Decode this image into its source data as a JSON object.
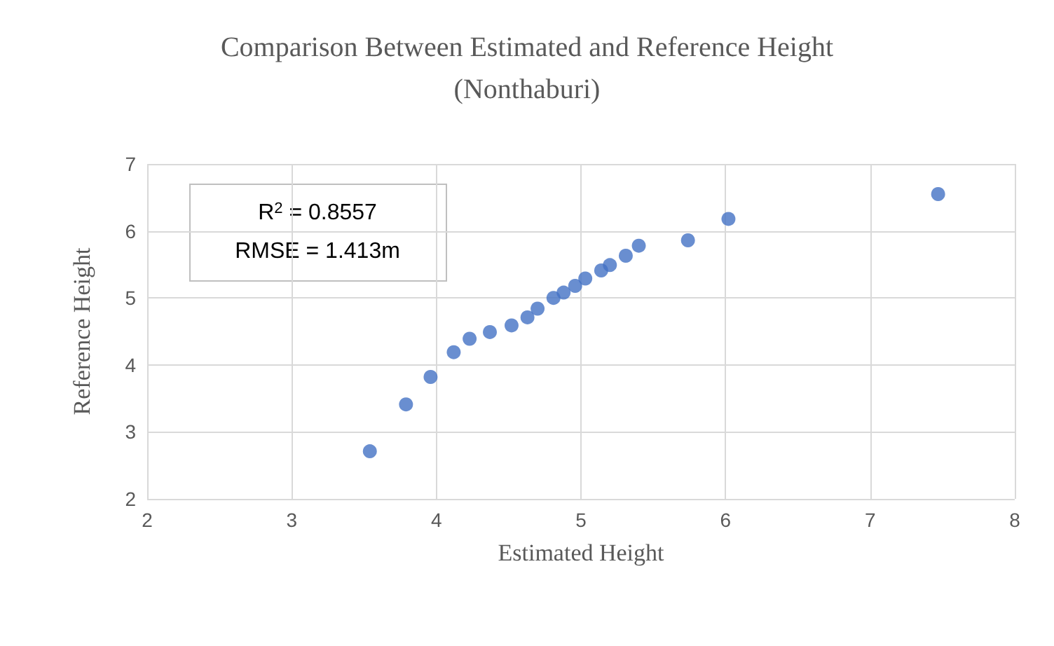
{
  "chart_data": {
    "type": "scatter",
    "title": "Comparison Between Estimated and Reference Height\n(Nonthaburi)",
    "xlabel": "Estimated Height",
    "ylabel": "Reference Height",
    "x": [
      3.54,
      3.79,
      3.96,
      4.12,
      4.23,
      4.37,
      4.52,
      4.63,
      4.7,
      4.81,
      4.88,
      4.96,
      5.03,
      5.14,
      5.2,
      5.31,
      5.4,
      5.74,
      6.02,
      7.47
    ],
    "series": [
      {
        "color": "#4472c4",
        "values": [
          2.71,
          3.41,
          3.82,
          4.19,
          4.39,
          4.49,
          4.59,
          4.71,
          4.84,
          5.0,
          5.08,
          5.18,
          5.29,
          5.41,
          5.49,
          5.63,
          5.78,
          5.86,
          6.18,
          6.55
        ]
      }
    ],
    "xlim": [
      2,
      8
    ],
    "xticks": [
      2,
      3,
      4,
      5,
      6,
      7,
      8
    ],
    "ylim": [
      2,
      7
    ],
    "yticks": [
      2,
      3,
      4,
      5,
      6,
      7
    ],
    "annotations": [
      "R$^{2}$ = 0.8557",
      "RMSE = 1.413m"
    ],
    "grid": true,
    "marker": "circle"
  }
}
